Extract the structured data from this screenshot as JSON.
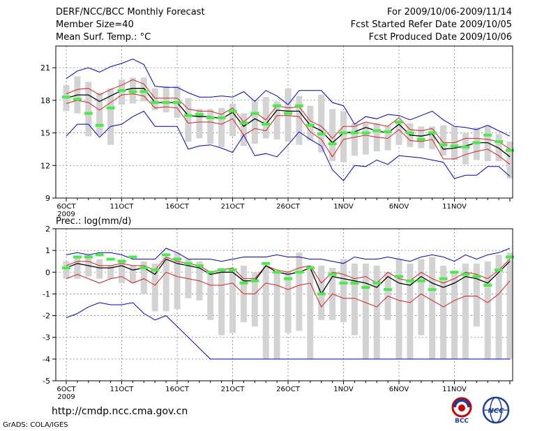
{
  "header": {
    "title": "DERF/NCC/BCC Monthly Forecast",
    "member_size": "Member Size=40",
    "variable": "Mean Surf. Temp.: °C",
    "period": "For 2009/10/06-2009/11/14",
    "fcst_started": "Fcst Started Refer Date 2009/10/05",
    "fcst_produced": "Fcst Produced Date 2009/10/06"
  },
  "footer": {
    "url": "http://cmdp.ncc.cma.gov.cn",
    "grads": "GrADS: COLA/IGES",
    "logo_bcc": "BCC",
    "logo_ncc": "NCC"
  },
  "colors": {
    "bar": "#d3d3d3",
    "envelope": "#0000cc",
    "spread": "#d62020",
    "mean": "#000000",
    "obs": "#44ee44",
    "grid": "#808080"
  },
  "chart_data": [
    {
      "type": "line",
      "title": "Mean Surf. Temp.: °C",
      "ylim": [
        9,
        23
      ],
      "yticks": [
        9,
        12,
        15,
        18,
        21
      ],
      "xlabels": [
        "6OCT",
        "11OCT",
        "16OCT",
        "21OCT",
        "26OCT",
        "1NOV",
        "6NOV",
        "11NOV"
      ],
      "xlabel_year": "2009",
      "days": 40,
      "series": [
        {
          "name": "max",
          "values": [
            20.0,
            20.7,
            21.0,
            20.6,
            21.1,
            21.4,
            21.8,
            21.3,
            19.3,
            19.2,
            19.2,
            18.7,
            18.3,
            18.3,
            18.4,
            18.3,
            18.8,
            17.9,
            18.9,
            18.4,
            17.6,
            18.9,
            18.9,
            18.9,
            17.8,
            17.5,
            15.8,
            16.5,
            16.3,
            16.7,
            16.6,
            16.2,
            16.6,
            17.0,
            16.2,
            15.6,
            15.5,
            15.3,
            15.7,
            15.2,
            14.7
          ]
        },
        {
          "name": "upper",
          "values": [
            18.6,
            19.0,
            19.1,
            18.5,
            19.0,
            19.4,
            19.9,
            19.5,
            18.2,
            18.2,
            18.2,
            17.2,
            17.0,
            17.0,
            16.7,
            17.3,
            16.0,
            16.9,
            16.2,
            17.5,
            17.3,
            17.4,
            16.1,
            15.6,
            14.5,
            15.6,
            15.6,
            16.0,
            15.8,
            15.6,
            16.4,
            15.3,
            15.2,
            15.4,
            14.1,
            14.1,
            14.5,
            14.5,
            14.4,
            14.2,
            13.5
          ]
        },
        {
          "name": "mean",
          "values": [
            18.2,
            18.5,
            18.5,
            17.9,
            18.4,
            18.9,
            19.1,
            19.1,
            17.8,
            17.8,
            17.8,
            16.6,
            16.5,
            16.5,
            16.3,
            16.9,
            15.6,
            16.3,
            15.8,
            17.1,
            17.0,
            17.0,
            15.7,
            15.2,
            14.1,
            15.0,
            15.1,
            15.5,
            15.2,
            15.0,
            15.8,
            14.8,
            14.7,
            14.9,
            13.5,
            13.6,
            13.8,
            14.1,
            14.1,
            13.6,
            12.8
          ]
        },
        {
          "name": "lower",
          "values": [
            17.7,
            18.0,
            17.8,
            17.1,
            17.8,
            18.5,
            18.6,
            18.4,
            17.3,
            17.4,
            17.3,
            15.9,
            16.0,
            16.0,
            15.8,
            16.3,
            14.8,
            15.4,
            15.2,
            16.6,
            16.6,
            16.5,
            15.1,
            14.4,
            12.8,
            14.4,
            14.6,
            14.8,
            14.6,
            14.5,
            15.3,
            14.3,
            14.2,
            14.4,
            12.6,
            12.6,
            13.0,
            13.3,
            13.5,
            12.9,
            12.1
          ]
        },
        {
          "name": "min",
          "values": [
            14.7,
            15.8,
            15.8,
            14.6,
            15.6,
            15.8,
            16.5,
            17.0,
            15.6,
            15.6,
            15.6,
            13.5,
            13.8,
            13.9,
            13.6,
            13.2,
            14.8,
            12.9,
            13.1,
            12.8,
            13.9,
            15.1,
            14.4,
            13.8,
            11.6,
            10.6,
            12.0,
            11.9,
            12.5,
            12.1,
            12.9,
            12.8,
            12.7,
            12.5,
            12.3,
            10.8,
            11.1,
            11.1,
            11.9,
            11.9,
            11.0
          ]
        },
        {
          "name": "bar_top",
          "values": [
            19.4,
            20.2,
            19.7,
            18.7,
            19.1,
            19.9,
            20.1,
            20.1,
            19.1,
            19.3,
            19.3,
            18.2,
            17.2,
            17.2,
            17.3,
            17.7,
            16.8,
            17.9,
            18.3,
            17.9,
            19.1,
            18.4,
            17.5,
            18.5,
            17.2,
            17.0,
            15.9,
            15.9,
            15.9,
            15.6,
            16.0,
            15.9,
            15.6,
            15.6,
            15.7,
            15.6,
            15.0,
            15.5,
            15.7,
            14.9,
            14.2
          ]
        },
        {
          "name": "bar_bottom",
          "values": [
            17.0,
            16.8,
            14.7,
            14.8,
            13.9,
            17.6,
            17.7,
            17.9,
            17.1,
            16.9,
            16.4,
            14.2,
            14.5,
            14.0,
            13.7,
            14.7,
            13.8,
            14.0,
            14.5,
            14.4,
            14.2,
            13.9,
            14.3,
            13.2,
            12.4,
            12.3,
            12.9,
            13.0,
            13.3,
            13.4,
            13.9,
            13.7,
            13.6,
            13.5,
            12.9,
            12.5,
            12.1,
            12.5,
            12.4,
            12.4,
            10.8
          ]
        },
        {
          "name": "obs",
          "values": [
            18.3,
            18.1,
            16.8,
            15.7,
            17.3,
            18.9,
            18.8,
            18.8,
            17.8,
            17.8,
            17.8,
            16.6,
            16.7,
            16.4,
            16.4,
            17.0,
            15.9,
            16.8,
            15.8,
            17.5,
            16.8,
            17.5,
            15.7,
            14.9,
            14.0,
            15.0,
            15.0,
            15.0,
            15.2,
            15.1,
            16.0,
            15.0,
            14.4,
            15.0,
            13.9,
            13.8,
            13.7,
            14.1,
            14.8,
            14.2,
            13.4
          ]
        }
      ]
    },
    {
      "type": "line",
      "title": "Prec.: log(mm/d)",
      "ylim": [
        -5,
        2
      ],
      "yticks": [
        -5,
        -4,
        -3,
        -2,
        -1,
        0,
        1,
        2
      ],
      "xlabels": [
        "6OCT",
        "11OCT",
        "16OCT",
        "21OCT",
        "26OCT",
        "1NOV",
        "6NOV",
        "11NOV"
      ],
      "xlabel_year": "2009",
      "days": 40,
      "series": [
        {
          "name": "max",
          "values": [
            0.8,
            0.9,
            0.8,
            0.9,
            0.9,
            0.8,
            0.6,
            0.6,
            0.6,
            1.1,
            0.9,
            0.6,
            0.6,
            0.6,
            0.5,
            0.6,
            0.7,
            0.7,
            0.7,
            0.8,
            0.7,
            0.7,
            0.6,
            0.6,
            0.5,
            0.4,
            0.7,
            0.6,
            0.6,
            0.7,
            0.6,
            0.5,
            0.7,
            0.8,
            0.7,
            0.5,
            0.8,
            0.6,
            0.8,
            0.9,
            1.1
          ]
        },
        {
          "name": "upper",
          "values": [
            0.3,
            0.5,
            0.5,
            0.3,
            0.3,
            0.4,
            0.3,
            0.3,
            0.1,
            0.7,
            0.5,
            0.4,
            0.3,
            0.0,
            0.1,
            0.2,
            -0.3,
            -0.3,
            0.3,
            0.1,
            0.0,
            0.2,
            0.3,
            -0.5,
            0.0,
            -0.1,
            -0.3,
            -0.2,
            -0.5,
            0.0,
            -0.3,
            -0.4,
            0.0,
            -0.3,
            -0.5,
            -0.3,
            0.0,
            -0.1,
            -0.3,
            0.1,
            0.6
          ]
        },
        {
          "name": "mean",
          "values": [
            0.2,
            0.4,
            0.3,
            0.2,
            0.2,
            0.3,
            0.1,
            0.2,
            -0.1,
            0.6,
            0.4,
            0.3,
            0.2,
            -0.1,
            0.0,
            0.0,
            -0.4,
            -0.4,
            0.3,
            0.0,
            -0.1,
            0.0,
            0.2,
            -1.0,
            -0.2,
            -0.3,
            -0.4,
            -0.5,
            -0.7,
            -0.2,
            -0.5,
            -0.6,
            -0.2,
            -0.5,
            -0.7,
            -0.5,
            -0.2,
            -0.3,
            -0.5,
            0.0,
            0.5
          ]
        },
        {
          "name": "lower",
          "values": [
            -0.3,
            -0.1,
            -0.3,
            -0.5,
            -0.3,
            -0.2,
            -0.5,
            -0.3,
            -0.6,
            0.0,
            -0.2,
            -0.3,
            -0.4,
            -0.6,
            -0.6,
            -0.5,
            -1.0,
            -1.0,
            -0.5,
            -0.6,
            -0.8,
            -0.6,
            -0.5,
            -1.6,
            -1.0,
            -1.2,
            -1.2,
            -1.4,
            -1.6,
            -1.1,
            -1.3,
            -1.4,
            -1.0,
            -1.3,
            -1.6,
            -1.3,
            -1.1,
            -1.1,
            -1.4,
            -1.0,
            -0.4
          ]
        },
        {
          "name": "min",
          "values": [
            -2.1,
            -1.9,
            -1.6,
            -1.4,
            -1.5,
            -1.5,
            -1.4,
            -1.9,
            -2.2,
            -2.0,
            -2.5,
            -3.0,
            -3.5,
            -4.0,
            -4.0,
            -4.0,
            -4.0,
            -4.0,
            -4.0,
            -4.0,
            -4.0,
            -4.0,
            -4.0,
            -4.0,
            -4.0,
            -4.0,
            -4.0,
            -4.0,
            -4.0,
            -4.0,
            -4.0,
            -4.0,
            -4.0,
            -4.0,
            -4.0,
            -4.0,
            -4.0,
            -4.0,
            -4.0,
            -4.0,
            -4.0
          ]
        },
        {
          "name": "bar_top",
          "values": [
            0.5,
            0.7,
            0.8,
            0.6,
            0.3,
            0.6,
            0.3,
            0.5,
            0.4,
            0.7,
            0.9,
            0.6,
            0.5,
            0.0,
            0.2,
            0.0,
            0.3,
            0.0,
            0.3,
            0.0,
            0.0,
            0.9,
            0.3,
            0.3,
            0.2,
            0.6,
            0.4,
            0.4,
            0.3,
            0.0,
            0.6,
            0.4,
            0.6,
            0.7,
            0.3,
            0.0,
            0.4,
            0.4,
            0.5,
            0.8,
            0.9
          ]
        },
        {
          "name": "bar_bottom",
          "values": [
            -0.3,
            -0.3,
            -0.2,
            -0.3,
            -0.3,
            -0.5,
            -0.5,
            -1.0,
            -1.8,
            -1.8,
            -1.7,
            -1.2,
            -1.3,
            -2.2,
            -2.9,
            -2.8,
            -2.3,
            -2.5,
            -4.0,
            -4.0,
            -2.8,
            -2.7,
            -4.0,
            -2.2,
            -2.2,
            -2.3,
            -2.9,
            -4.0,
            -4.0,
            -2.2,
            -4.0,
            -4.0,
            -2.9,
            -4.0,
            -4.0,
            -4.0,
            -4.0,
            -2.5,
            -4.0,
            -4.0,
            -4.0
          ]
        },
        {
          "name": "obs",
          "values": [
            0.2,
            0.7,
            0.7,
            0.8,
            0.6,
            0.5,
            0.7,
            0.2,
            0.1,
            0.8,
            0.6,
            0.4,
            0.3,
            0.0,
            0.1,
            0.1,
            -0.5,
            -0.4,
            0.4,
            0.0,
            -0.3,
            0.0,
            0.2,
            -1.0,
            -0.1,
            -0.5,
            -0.5,
            -0.7,
            -0.5,
            -0.8,
            -0.2,
            -0.4,
            -0.4,
            -0.8,
            -0.3,
            0.0,
            -0.1,
            -0.2,
            -0.6,
            0.1,
            0.7
          ]
        }
      ]
    }
  ]
}
